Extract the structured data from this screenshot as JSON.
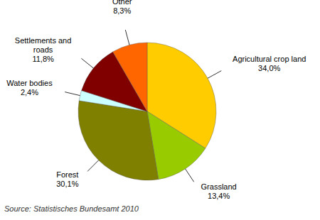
{
  "chart_data": {
    "type": "pie",
    "categories": [
      "Agricultural crop land",
      "Grassland",
      "Forest",
      "Water bodies",
      "Settlements and roads",
      "Other"
    ],
    "values": [
      34.0,
      13.4,
      30.1,
      2.4,
      11.8,
      8.3
    ],
    "value_labels": [
      "34,0%",
      "13,4%",
      "30,1%",
      "2,4%",
      "11,8%",
      "8,3%"
    ],
    "colors": [
      "#ffcc00",
      "#99cc00",
      "#808000",
      "#ccffff",
      "#800000",
      "#ff6600"
    ],
    "data_labels": true,
    "source": "Source: Statistisches Bundesamt 2010"
  }
}
